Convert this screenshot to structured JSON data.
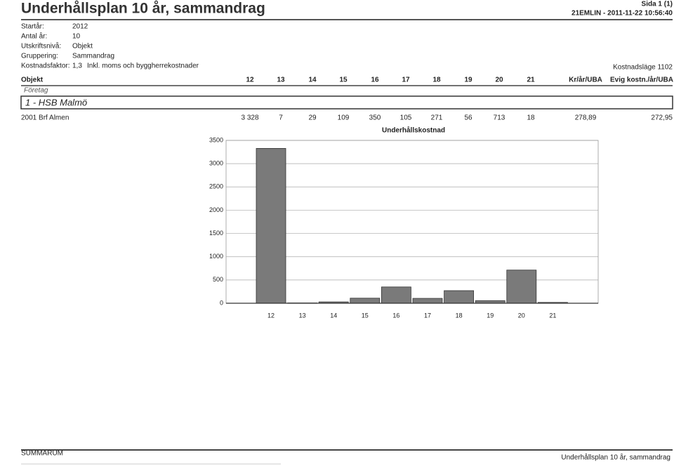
{
  "header": {
    "title": "Underhållsplan 10 år, sammandrag",
    "page": "Sida 1 (1)",
    "meta": "21EMLIN - 2011-11-22 10:56:40"
  },
  "params": [
    {
      "label": "Startår:",
      "value": "2012"
    },
    {
      "label": "Antal år:",
      "value": "10"
    },
    {
      "label": "Utskriftsnivå:",
      "value": "Objekt"
    },
    {
      "label": "Gruppering:",
      "value": "Sammandrag"
    },
    {
      "label": "Kostnadsfaktor:",
      "value": "1,3"
    }
  ],
  "params_note": "Inkl. moms och byggherrekostnader",
  "cost_level": "Kostnadsläge 1102",
  "table": {
    "columns": [
      "Objekt",
      "12",
      "13",
      "14",
      "15",
      "16",
      "17",
      "18",
      "19",
      "20",
      "21",
      "Kr/år/UBA",
      "Evig kostn./år/UBA"
    ],
    "subheader": "Företag",
    "group": "1 - HSB Malmö",
    "rows": [
      [
        "2001 Brf Almen",
        "3 328",
        "7",
        "29",
        "109",
        "350",
        "105",
        "271",
        "56",
        "713",
        "18",
        "278,89",
        "272,95"
      ]
    ]
  },
  "chart_data": {
    "type": "bar",
    "title": "Underhållskostnad",
    "categories": [
      "12",
      "13",
      "14",
      "15",
      "16",
      "17",
      "18",
      "19",
      "20",
      "21"
    ],
    "values": [
      3328,
      7,
      29,
      109,
      350,
      105,
      271,
      56,
      713,
      18
    ],
    "color": "#7a7a7a",
    "ylim": [
      0,
      3500
    ],
    "yticks": [
      0,
      500,
      1000,
      1500,
      2000,
      2500,
      3000,
      3500
    ],
    "grid": true
  },
  "footer": {
    "left": "SUMMARUM",
    "right": "Underhållsplan 10 år, sammandrag"
  }
}
